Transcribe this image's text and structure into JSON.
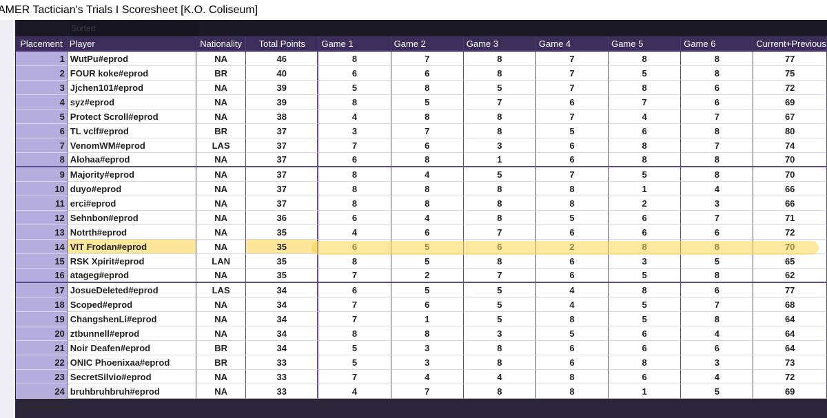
{
  "title": "AMER Tactician's Trials I Scoresheet [K.O. Coliseum]",
  "sorted_label": "Sorted",
  "columns": [
    "Placement",
    "Player",
    "Nationality",
    "Total Points",
    "Game 1",
    "Game 2",
    "Game 3",
    "Game 4",
    "Game 5",
    "Game 6",
    "Current+Previous"
  ],
  "rows": [
    {
      "placement": "1",
      "player": "WutPu#eprod",
      "nationality": "NA",
      "total": "46",
      "games": [
        "8",
        "7",
        "8",
        "7",
        "8",
        "8"
      ],
      "combined": "77"
    },
    {
      "placement": "2",
      "player": "FOUR koke#eprod",
      "nationality": "BR",
      "total": "40",
      "games": [
        "6",
        "6",
        "8",
        "7",
        "5",
        "8"
      ],
      "combined": "75"
    },
    {
      "placement": "3",
      "player": "Jjchen101#eprod",
      "nationality": "NA",
      "total": "39",
      "games": [
        "5",
        "8",
        "5",
        "7",
        "8",
        "6"
      ],
      "combined": "72"
    },
    {
      "placement": "4",
      "player": "syz#eprod",
      "nationality": "NA",
      "total": "39",
      "games": [
        "8",
        "5",
        "7",
        "6",
        "7",
        "6"
      ],
      "combined": "69"
    },
    {
      "placement": "5",
      "player": "Protect Scroll#eprod",
      "nationality": "NA",
      "total": "38",
      "games": [
        "4",
        "8",
        "8",
        "7",
        "4",
        "7"
      ],
      "combined": "67"
    },
    {
      "placement": "6",
      "player": "TL vclf#eprod",
      "nationality": "BR",
      "total": "37",
      "games": [
        "3",
        "7",
        "8",
        "5",
        "6",
        "8"
      ],
      "combined": "80"
    },
    {
      "placement": "7",
      "player": "VenomWM#eprod",
      "nationality": "LAS",
      "total": "37",
      "games": [
        "7",
        "6",
        "3",
        "6",
        "8",
        "7"
      ],
      "combined": "74"
    },
    {
      "placement": "8",
      "player": "Alohaa#eprod",
      "nationality": "NA",
      "total": "37",
      "games": [
        "6",
        "8",
        "1",
        "6",
        "8",
        "8"
      ],
      "combined": "70"
    },
    {
      "placement": "9",
      "player": "Majority#eprod",
      "nationality": "NA",
      "total": "37",
      "games": [
        "8",
        "4",
        "5",
        "7",
        "5",
        "8"
      ],
      "combined": "70"
    },
    {
      "placement": "10",
      "player": "duyo#eprod",
      "nationality": "NA",
      "total": "37",
      "games": [
        "8",
        "8",
        "8",
        "8",
        "1",
        "4"
      ],
      "combined": "66"
    },
    {
      "placement": "11",
      "player": "erci#eprod",
      "nationality": "NA",
      "total": "37",
      "games": [
        "8",
        "8",
        "8",
        "8",
        "2",
        "3"
      ],
      "combined": "66"
    },
    {
      "placement": "12",
      "player": "Sehnbon#eprod",
      "nationality": "NA",
      "total": "36",
      "games": [
        "6",
        "4",
        "8",
        "5",
        "6",
        "7"
      ],
      "combined": "71"
    },
    {
      "placement": "13",
      "player": "Notrth#eprod",
      "nationality": "NA",
      "total": "35",
      "games": [
        "4",
        "6",
        "7",
        "6",
        "6",
        "6"
      ],
      "combined": "72"
    },
    {
      "placement": "14",
      "player": "VIT Frodan#eprod",
      "nationality": "NA",
      "total": "35",
      "games": [
        "6",
        "5",
        "6",
        "2",
        "8",
        "8"
      ],
      "combined": "70",
      "highlighted": true
    },
    {
      "placement": "15",
      "player": "RSK Xpirit#eprod",
      "nationality": "LAN",
      "total": "35",
      "games": [
        "8",
        "5",
        "8",
        "6",
        "3",
        "5"
      ],
      "combined": "65"
    },
    {
      "placement": "16",
      "player": "atageg#eprod",
      "nationality": "NA",
      "total": "35",
      "games": [
        "7",
        "2",
        "7",
        "6",
        "5",
        "8"
      ],
      "combined": "62"
    },
    {
      "placement": "17",
      "player": "JosueDeleted#eprod",
      "nationality": "LAS",
      "total": "34",
      "games": [
        "6",
        "5",
        "5",
        "4",
        "8",
        "6"
      ],
      "combined": "77"
    },
    {
      "placement": "18",
      "player": "Scoped#eprod",
      "nationality": "NA",
      "total": "34",
      "games": [
        "7",
        "6",
        "5",
        "4",
        "5",
        "7"
      ],
      "combined": "68"
    },
    {
      "placement": "19",
      "player": "ChangshenLi#eprod",
      "nationality": "NA",
      "total": "34",
      "games": [
        "7",
        "1",
        "5",
        "8",
        "5",
        "8"
      ],
      "combined": "64"
    },
    {
      "placement": "20",
      "player": "ztbunnell#eprod",
      "nationality": "NA",
      "total": "34",
      "games": [
        "8",
        "8",
        "3",
        "5",
        "6",
        "4"
      ],
      "combined": "64"
    },
    {
      "placement": "21",
      "player": "Noir Deafen#eprod",
      "nationality": "BR",
      "total": "34",
      "games": [
        "5",
        "3",
        "8",
        "6",
        "6",
        "6"
      ],
      "combined": "64"
    },
    {
      "placement": "22",
      "player": "ONIC Phoenixaa#eprod",
      "nationality": "BR",
      "total": "33",
      "games": [
        "5",
        "3",
        "8",
        "6",
        "8",
        "3"
      ],
      "combined": "73"
    },
    {
      "placement": "23",
      "player": "SecretSilvio#eprod",
      "nationality": "NA",
      "total": "33",
      "games": [
        "7",
        "4",
        "4",
        "8",
        "6",
        "4"
      ],
      "combined": "72"
    },
    {
      "placement": "24",
      "player": "bruhbruhbruh#eprod",
      "nationality": "NA",
      "total": "33",
      "games": [
        "4",
        "7",
        "8",
        "8",
        "1",
        "5"
      ],
      "combined": "69"
    }
  ],
  "colors": {
    "header_bg": "#3b2e5a",
    "placement_bg": "#b6addf",
    "highlight": "#fad550"
  }
}
